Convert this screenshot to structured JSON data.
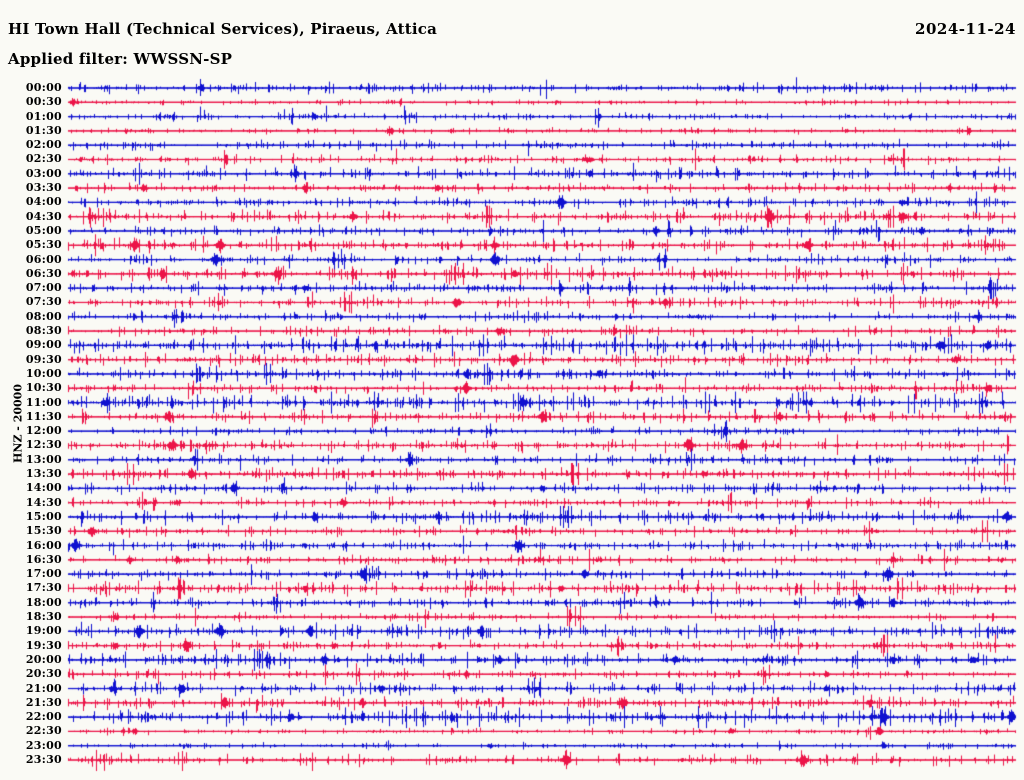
{
  "header": {
    "station_title": "HI Town Hall (Technical Services), Piraeus, Attica",
    "filter_label": "Applied filter: WWSSN-SP",
    "date": "2024-11-24"
  },
  "scale_label": "HNZ - 20000",
  "colors": {
    "trace_blue": "#0f10d0",
    "trace_red": "#ec1347",
    "background": "#fafaf5",
    "text": "#000000"
  },
  "chart_data": {
    "type": "line",
    "subtype": "helicorder-seismogram",
    "title": "HI Town Hall (Technical Services), Piraeus, Attica",
    "filter": "WWSSN-SP",
    "date": "2024-11-24",
    "channel": "HNZ",
    "amplitude_scale": 20000,
    "minutes_per_row": 30,
    "rows_count": 48,
    "row_color_rule": "on-the-hour rows blue, half-hour rows red",
    "legend_position": "none",
    "grid": false,
    "rows": [
      {
        "label": "00:00",
        "color": "blue",
        "noise": 2.0,
        "events": [
          [
            0.14,
            3.5
          ]
        ]
      },
      {
        "label": "00:30",
        "color": "red",
        "noise": 1.2,
        "events": [
          [
            0.005,
            4
          ]
        ]
      },
      {
        "label": "01:00",
        "color": "blue",
        "noise": 1.5,
        "events": [
          [
            0.26,
            2.5
          ],
          [
            0.56,
            2
          ]
        ]
      },
      {
        "label": "01:30",
        "color": "red",
        "noise": 1.3,
        "events": [
          [
            0.34,
            3
          ],
          [
            0.95,
            2.5
          ]
        ]
      },
      {
        "label": "02:00",
        "color": "blue",
        "noise": 1.9,
        "events": []
      },
      {
        "label": "02:30",
        "color": "red",
        "noise": 1.8,
        "events": [
          [
            0.55,
            2.5
          ]
        ]
      },
      {
        "label": "03:00",
        "color": "blue",
        "noise": 2.6,
        "events": [
          [
            0.24,
            4
          ],
          [
            0.55,
            3
          ]
        ]
      },
      {
        "label": "03:30",
        "color": "red",
        "noise": 1.8,
        "events": [
          [
            0.08,
            4
          ],
          [
            0.25,
            4
          ],
          [
            0.39,
            3.5
          ],
          [
            0.93,
            3
          ]
        ]
      },
      {
        "label": "04:00",
        "color": "blue",
        "noise": 2.0,
        "events": [
          [
            0.52,
            6
          ],
          [
            0.88,
            3
          ]
        ]
      },
      {
        "label": "04:30",
        "color": "red",
        "noise": 2.8,
        "events": [
          [
            0.3,
            4
          ],
          [
            0.74,
            7
          ],
          [
            0.88,
            5
          ]
        ]
      },
      {
        "label": "05:00",
        "color": "blue",
        "noise": 2.0,
        "events": [
          [
            0.62,
            4
          ],
          [
            0.9,
            4
          ]
        ]
      },
      {
        "label": "05:30",
        "color": "red",
        "noise": 2.8,
        "events": [
          [
            0.07,
            5
          ],
          [
            0.16,
            6
          ],
          [
            0.45,
            5
          ],
          [
            0.78,
            5
          ]
        ]
      },
      {
        "label": "06:00",
        "color": "blue",
        "noise": 2.0,
        "events": [
          [
            0.155,
            6
          ],
          [
            0.45,
            6
          ]
        ]
      },
      {
        "label": "06:30",
        "color": "red",
        "noise": 2.8,
        "events": [
          [
            0.1,
            4
          ],
          [
            0.22,
            4
          ],
          [
            0.47,
            3
          ]
        ]
      },
      {
        "label": "07:00",
        "color": "blue",
        "noise": 2.3,
        "events": [
          [
            0.25,
            3
          ],
          [
            0.52,
            3
          ]
        ]
      },
      {
        "label": "07:30",
        "color": "red",
        "noise": 2.4,
        "events": [
          [
            0.41,
            5
          ],
          [
            0.63,
            4
          ]
        ]
      },
      {
        "label": "08:00",
        "color": "blue",
        "noise": 2.0,
        "events": [
          [
            0.96,
            4
          ]
        ]
      },
      {
        "label": "08:30",
        "color": "red",
        "noise": 2.0,
        "events": [
          [
            0.455,
            5
          ]
        ]
      },
      {
        "label": "09:00",
        "color": "blue",
        "noise": 3.6,
        "events": [
          [
            0.92,
            5
          ],
          [
            0.97,
            4
          ]
        ]
      },
      {
        "label": "09:30",
        "color": "red",
        "noise": 2.6,
        "events": [
          [
            0.47,
            6
          ]
        ]
      },
      {
        "label": "10:00",
        "color": "blue",
        "noise": 2.4,
        "events": [
          [
            0.42,
            4
          ],
          [
            0.56,
            4
          ]
        ]
      },
      {
        "label": "10:30",
        "color": "red",
        "noise": 2.0,
        "events": [
          [
            0.42,
            5
          ],
          [
            0.97,
            4
          ]
        ]
      },
      {
        "label": "11:00",
        "color": "blue",
        "noise": 3.6,
        "events": [
          [
            0.04,
            4
          ],
          [
            0.48,
            5
          ]
        ]
      },
      {
        "label": "11:30",
        "color": "red",
        "noise": 2.6,
        "events": [
          [
            0.105,
            5
          ],
          [
            0.5,
            5
          ],
          [
            0.75,
            4
          ]
        ]
      },
      {
        "label": "12:00",
        "color": "blue",
        "noise": 1.6,
        "events": []
      },
      {
        "label": "12:30",
        "color": "red",
        "noise": 2.6,
        "events": [
          [
            0.11,
            6
          ],
          [
            0.655,
            7
          ],
          [
            0.71,
            6
          ]
        ]
      },
      {
        "label": "13:00",
        "color": "blue",
        "noise": 2.0,
        "events": [
          [
            0.36,
            5
          ]
        ]
      },
      {
        "label": "13:30",
        "color": "red",
        "noise": 2.4,
        "events": [
          [
            0.13,
            5
          ],
          [
            0.67,
            3
          ]
        ]
      },
      {
        "label": "14:00",
        "color": "blue",
        "noise": 2.2,
        "events": [
          [
            0.175,
            5
          ],
          [
            0.5,
            3
          ]
        ]
      },
      {
        "label": "14:30",
        "color": "red",
        "noise": 1.9,
        "events": [
          [
            0.115,
            3
          ],
          [
            0.29,
            4
          ]
        ]
      },
      {
        "label": "15:00",
        "color": "blue",
        "noise": 2.8,
        "events": [
          [
            0.26,
            4
          ],
          [
            0.39,
            4
          ],
          [
            0.99,
            5
          ]
        ]
      },
      {
        "label": "15:30",
        "color": "red",
        "noise": 1.9,
        "events": [
          [
            0.025,
            5
          ]
        ]
      },
      {
        "label": "16:00",
        "color": "blue",
        "noise": 2.2,
        "events": [
          [
            0.008,
            6
          ],
          [
            0.475,
            6
          ]
        ]
      },
      {
        "label": "16:30",
        "color": "red",
        "noise": 1.9,
        "events": [
          [
            0.065,
            4
          ],
          [
            0.115,
            4
          ],
          [
            0.87,
            4
          ]
        ]
      },
      {
        "label": "17:00",
        "color": "blue",
        "noise": 2.0,
        "events": [
          [
            0.31,
            4
          ],
          [
            0.545,
            4
          ],
          [
            0.865,
            6
          ]
        ]
      },
      {
        "label": "17:30",
        "color": "red",
        "noise": 2.8,
        "events": [
          [
            0.25,
            3
          ],
          [
            0.52,
            3
          ]
        ]
      },
      {
        "label": "18:00",
        "color": "blue",
        "noise": 2.1,
        "events": [
          [
            0.62,
            3
          ],
          [
            0.835,
            6
          ],
          [
            0.87,
            4
          ]
        ]
      },
      {
        "label": "18:30",
        "color": "red",
        "noise": 1.6,
        "events": [
          [
            0.05,
            3
          ]
        ]
      },
      {
        "label": "19:00",
        "color": "blue",
        "noise": 2.8,
        "events": [
          [
            0.075,
            6
          ],
          [
            0.16,
            6
          ],
          [
            0.255,
            5
          ],
          [
            0.435,
            4
          ]
        ]
      },
      {
        "label": "19:30",
        "color": "red",
        "noise": 2.0,
        "events": [
          [
            0.05,
            4
          ],
          [
            0.125,
            5
          ],
          [
            0.28,
            3
          ]
        ]
      },
      {
        "label": "20:00",
        "color": "blue",
        "noise": 2.8,
        "events": [
          [
            0.21,
            4
          ],
          [
            0.27,
            5
          ],
          [
            0.455,
            4
          ],
          [
            0.64,
            4
          ],
          [
            0.87,
            4
          ],
          [
            0.955,
            4
          ]
        ]
      },
      {
        "label": "20:30",
        "color": "red",
        "noise": 1.9,
        "events": [
          [
            0.42,
            3
          ],
          [
            0.8,
            3
          ]
        ]
      },
      {
        "label": "21:00",
        "color": "blue",
        "noise": 2.4,
        "events": [
          [
            0.12,
            4
          ],
          [
            0.33,
            4
          ],
          [
            0.8,
            3
          ]
        ]
      },
      {
        "label": "21:30",
        "color": "red",
        "noise": 2.4,
        "events": [
          [
            0.165,
            5
          ],
          [
            0.31,
            4
          ],
          [
            0.585,
            6
          ],
          [
            0.845,
            4
          ]
        ]
      },
      {
        "label": "22:00",
        "color": "blue",
        "noise": 3.6,
        "events": [
          [
            0.235,
            3
          ],
          [
            0.86,
            6
          ],
          [
            0.995,
            5
          ]
        ]
      },
      {
        "label": "22:30",
        "color": "red",
        "noise": 1.2,
        "events": [
          [
            0.07,
            3
          ],
          [
            0.7,
            3
          ],
          [
            0.855,
            5
          ]
        ]
      },
      {
        "label": "23:00",
        "color": "blue",
        "noise": 1.2,
        "events": [
          [
            0.445,
            2.5
          ],
          [
            0.86,
            3
          ]
        ]
      },
      {
        "label": "23:30",
        "color": "red",
        "noise": 2.2,
        "events": [
          [
            0.525,
            6
          ],
          [
            0.775,
            6
          ]
        ]
      }
    ]
  }
}
